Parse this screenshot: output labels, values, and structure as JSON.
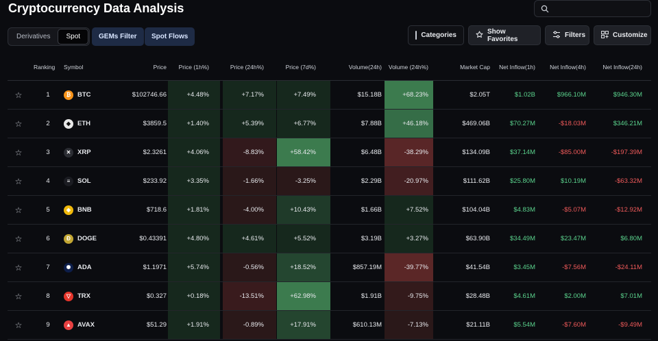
{
  "page": {
    "title": "Cryptocurrency Data Analysis"
  },
  "search": {
    "placeholder": ""
  },
  "tabs": [
    {
      "label": "Derivatives",
      "active": false
    },
    {
      "label": "Spot",
      "active": true
    }
  ],
  "filters": {
    "gems": "GEMs Filter",
    "spot_flows": "Spot Flows"
  },
  "toolbar": {
    "categories": "Categories",
    "show_favorites": "Show Favorites",
    "filters": "Filters",
    "customize": "Customize"
  },
  "colors": {
    "positive_text": "#5bd38d",
    "negative_text": "#f05a5a",
    "positive_column_bg": "#16281d",
    "negative_column_bg": "#2a1819"
  },
  "table": {
    "headers": [
      "Ranking",
      "Symbol",
      "Price",
      "Price (1h%)",
      "Price (24h%)",
      "Price (7d%)",
      "Volume(24h)",
      "Volume (24h%)",
      "Market Cap",
      "Net Inflow(1h)",
      "Net Inflow(4h)",
      "Net Inflow(24h)"
    ],
    "rows": [
      {
        "rank": "1",
        "symbol": "BTC",
        "icon": "bitcoin-icon",
        "icon_color": "#f7931a",
        "glyph": "₿",
        "price": "$102746.66",
        "p1h": "+4.48%",
        "p24h": "+7.17%",
        "p7d": "+7.49%",
        "vol": "$15.18B",
        "vol_pct": "+68.23%",
        "mcap": "$2.05T",
        "in1h": "$1.02B",
        "in4h": "$966.10M",
        "in24h": "$946.30M"
      },
      {
        "rank": "2",
        "symbol": "ETH",
        "icon": "ethereum-icon",
        "icon_color": "#e8e8e8",
        "glyph": "◆",
        "price": "$3859.5",
        "p1h": "+1.40%",
        "p24h": "+5.39%",
        "p7d": "+6.77%",
        "vol": "$7.88B",
        "vol_pct": "+46.18%",
        "mcap": "$469.06B",
        "in1h": "$70.27M",
        "in4h": "-$18.03M",
        "in24h": "$346.21M"
      },
      {
        "rank": "3",
        "symbol": "XRP",
        "icon": "xrp-icon",
        "icon_color": "#2b2d33",
        "glyph": "✕",
        "price": "$2.3261",
        "p1h": "+4.06%",
        "p24h": "-8.83%",
        "p7d": "+58.42%",
        "vol": "$6.48B",
        "vol_pct": "-38.29%",
        "mcap": "$134.09B",
        "in1h": "$37.14M",
        "in4h": "-$85.00M",
        "in24h": "-$197.39M"
      },
      {
        "rank": "4",
        "symbol": "SOL",
        "icon": "solana-icon",
        "icon_color": "#1b1c22",
        "glyph": "≡",
        "price": "$233.92",
        "p1h": "+3.35%",
        "p24h": "-1.66%",
        "p7d": "-3.25%",
        "vol": "$2.29B",
        "vol_pct": "-20.97%",
        "mcap": "$111.62B",
        "in1h": "$25.80M",
        "in4h": "$10.19M",
        "in24h": "-$63.32M"
      },
      {
        "rank": "5",
        "symbol": "BNB",
        "icon": "bnb-icon",
        "icon_color": "#f0b90b",
        "glyph": "◈",
        "price": "$718.6",
        "p1h": "+1.81%",
        "p24h": "-4.00%",
        "p7d": "+10.43%",
        "vol": "$1.66B",
        "vol_pct": "+7.52%",
        "mcap": "$104.04B",
        "in1h": "$4.83M",
        "in4h": "-$5.07M",
        "in24h": "-$12.92M"
      },
      {
        "rank": "6",
        "symbol": "DOGE",
        "icon": "dogecoin-icon",
        "icon_color": "#c2a633",
        "glyph": "Ð",
        "price": "$0.43391",
        "p1h": "+4.80%",
        "p24h": "+4.61%",
        "p7d": "+5.52%",
        "vol": "$3.19B",
        "vol_pct": "+3.27%",
        "mcap": "$63.90B",
        "in1h": "$34.49M",
        "in4h": "$23.47M",
        "in24h": "$6.80M"
      },
      {
        "rank": "7",
        "symbol": "ADA",
        "icon": "cardano-icon",
        "icon_color": "#0d1e4a",
        "glyph": "✺",
        "price": "$1.1971",
        "p1h": "+5.74%",
        "p24h": "-0.56%",
        "p7d": "+18.52%",
        "vol": "$857.19M",
        "vol_pct": "-39.77%",
        "mcap": "$41.54B",
        "in1h": "$3.45M",
        "in4h": "-$7.56M",
        "in24h": "-$24.11M"
      },
      {
        "rank": "8",
        "symbol": "TRX",
        "icon": "tron-icon",
        "icon_color": "#e5352b",
        "glyph": "▽",
        "price": "$0.327",
        "p1h": "+0.18%",
        "p24h": "-13.51%",
        "p7d": "+62.98%",
        "vol": "$1.91B",
        "vol_pct": "-9.75%",
        "mcap": "$28.48B",
        "in1h": "$4.61M",
        "in4h": "$2.00M",
        "in24h": "$7.01M"
      },
      {
        "rank": "9",
        "symbol": "AVAX",
        "icon": "avalanche-icon",
        "icon_color": "#e84142",
        "glyph": "▲",
        "price": "$51.29",
        "p1h": "+1.91%",
        "p24h": "-0.89%",
        "p7d": "+17.91%",
        "vol": "$610.13M",
        "vol_pct": "-7.13%",
        "mcap": "$21.11B",
        "in1h": "$5.54M",
        "in4h": "-$7.60M",
        "in24h": "-$9.49M"
      }
    ]
  }
}
